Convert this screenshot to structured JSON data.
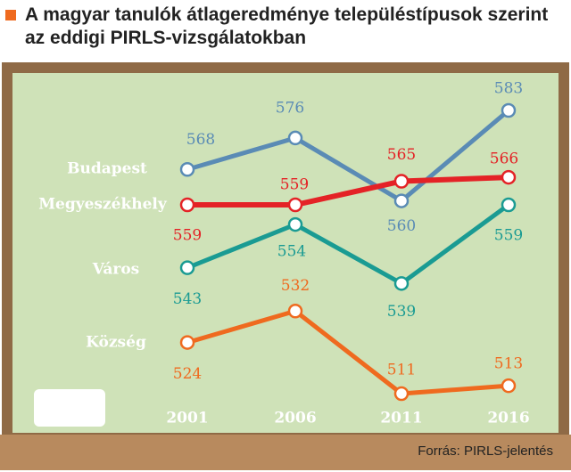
{
  "chart_data": {
    "type": "line",
    "title": "A magyar tanulók átlageredménye településtípusok szerint az eddigi PIRLS-vizsgálatokban",
    "source": "Forrás: PIRLS-jelentés",
    "categories": [
      "2001",
      "2006",
      "2011",
      "2016"
    ],
    "series": [
      {
        "name": "Budapest",
        "color": "#5a8bb5",
        "values": [
          568,
          576,
          560,
          583
        ]
      },
      {
        "name": "Megyeszékhely",
        "color": "#e42226",
        "values": [
          559,
          559,
          565,
          566
        ]
      },
      {
        "name": "Város",
        "color": "#1a9b93",
        "values": [
          543,
          554,
          539,
          559
        ]
      },
      {
        "name": "Község",
        "color": "#ef6a1f",
        "values": [
          524,
          532,
          511,
          513
        ]
      }
    ]
  }
}
